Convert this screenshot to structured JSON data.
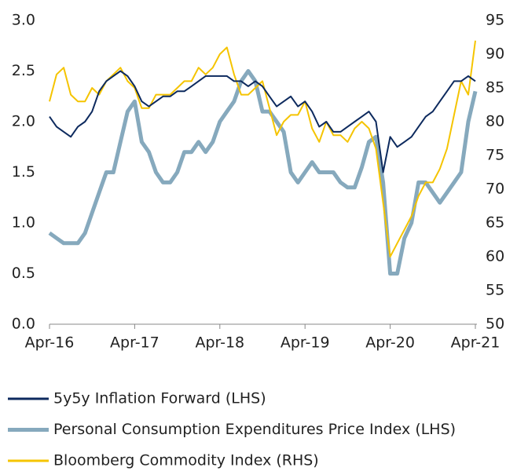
{
  "chart_data": {
    "type": "line",
    "x": [
      "Apr-16",
      "May-16",
      "Jun-16",
      "Jul-16",
      "Aug-16",
      "Sep-16",
      "Oct-16",
      "Nov-16",
      "Dec-16",
      "Jan-17",
      "Feb-17",
      "Mar-17",
      "Apr-17",
      "May-17",
      "Jun-17",
      "Jul-17",
      "Aug-17",
      "Sep-17",
      "Oct-17",
      "Nov-17",
      "Dec-17",
      "Jan-18",
      "Feb-18",
      "Mar-18",
      "Apr-18",
      "May-18",
      "Jun-18",
      "Jul-18",
      "Aug-18",
      "Sep-18",
      "Oct-18",
      "Nov-18",
      "Dec-18",
      "Jan-19",
      "Feb-19",
      "Mar-19",
      "Apr-19",
      "May-19",
      "Jun-19",
      "Jul-19",
      "Aug-19",
      "Sep-19",
      "Oct-19",
      "Nov-19",
      "Dec-19",
      "Jan-20",
      "Feb-20",
      "Mar-20",
      "Apr-20",
      "May-20",
      "Jun-20",
      "Jul-20",
      "Aug-20",
      "Sep-20",
      "Oct-20",
      "Nov-20",
      "Dec-20",
      "Jan-21",
      "Feb-21",
      "Mar-21",
      "Apr-21"
    ],
    "xticks": [
      "Apr-16",
      "Apr-17",
      "Apr-18",
      "Apr-19",
      "Apr-20",
      "Apr-21"
    ],
    "ylim": [
      0,
      3
    ],
    "yticks": [
      {
        "value": 0,
        "label": "0.0"
      },
      0.5,
      {
        "value": 1,
        "label": "1.0"
      },
      1.5,
      {
        "value": 2,
        "label": "2.0"
      },
      2.5,
      {
        "value": 3,
        "label": "3.0"
      }
    ],
    "y2lim": [
      50,
      95
    ],
    "y2ticks": [
      50,
      55,
      60,
      65,
      70,
      75,
      80,
      85,
      90,
      95
    ],
    "series": [
      {
        "name": "5y5y Inflation Forward (LHS)",
        "color": "#0d2a5e",
        "values": [
          2.05,
          1.95,
          1.9,
          1.85,
          1.95,
          2.0,
          2.1,
          2.3,
          2.4,
          2.45,
          2.5,
          2.45,
          2.35,
          2.2,
          2.15,
          2.2,
          2.25,
          2.25,
          2.3,
          2.3,
          2.35,
          2.4,
          2.45,
          2.45,
          2.45,
          2.45,
          2.4,
          2.4,
          2.35,
          2.4,
          2.35,
          2.25,
          2.15,
          2.2,
          2.25,
          2.15,
          2.2,
          2.1,
          1.95,
          2.0,
          1.9,
          1.9,
          1.95,
          2.0,
          2.05,
          2.1,
          2.0,
          1.5,
          1.85,
          1.75,
          1.8,
          1.85,
          1.95,
          2.05,
          2.1,
          2.2,
          2.3,
          2.4,
          2.4,
          2.45,
          2.4
        ]
      },
      {
        "name": "Personal Consumption Expenditures Price Index (LHS)",
        "color": "#86a9bd",
        "values": [
          0.9,
          0.85,
          0.8,
          0.8,
          0.8,
          0.9,
          1.1,
          1.3,
          1.5,
          1.5,
          1.8,
          2.1,
          2.2,
          1.8,
          1.7,
          1.5,
          1.4,
          1.4,
          1.5,
          1.7,
          1.7,
          1.8,
          1.7,
          1.8,
          2.0,
          2.1,
          2.2,
          2.4,
          2.5,
          2.4,
          2.1,
          2.1,
          2.0,
          1.9,
          1.5,
          1.4,
          1.5,
          1.6,
          1.5,
          1.5,
          1.5,
          1.4,
          1.35,
          1.35,
          1.55,
          1.8,
          1.85,
          1.4,
          0.5,
          0.5,
          0.85,
          1.0,
          1.4,
          1.4,
          1.3,
          1.2,
          1.3,
          1.4,
          1.5,
          2.0,
          2.3
        ]
      },
      {
        "name": "Bloomberg Commodity Index (RHS)",
        "color": "#f5c400",
        "axis": "y2",
        "values": [
          83,
          87,
          88,
          84,
          83,
          83,
          85,
          84,
          86,
          87,
          88,
          86,
          85,
          82,
          82,
          84,
          84,
          84,
          85,
          86,
          86,
          88,
          87,
          88,
          90,
          91,
          87,
          84,
          84,
          85,
          86,
          82,
          78,
          80,
          81,
          81,
          83,
          79,
          77,
          80,
          78,
          78,
          77,
          79,
          80,
          79,
          76,
          68,
          60,
          62,
          64,
          66,
          69,
          71,
          71,
          73,
          76,
          81,
          86,
          84,
          92
        ]
      }
    ]
  }
}
